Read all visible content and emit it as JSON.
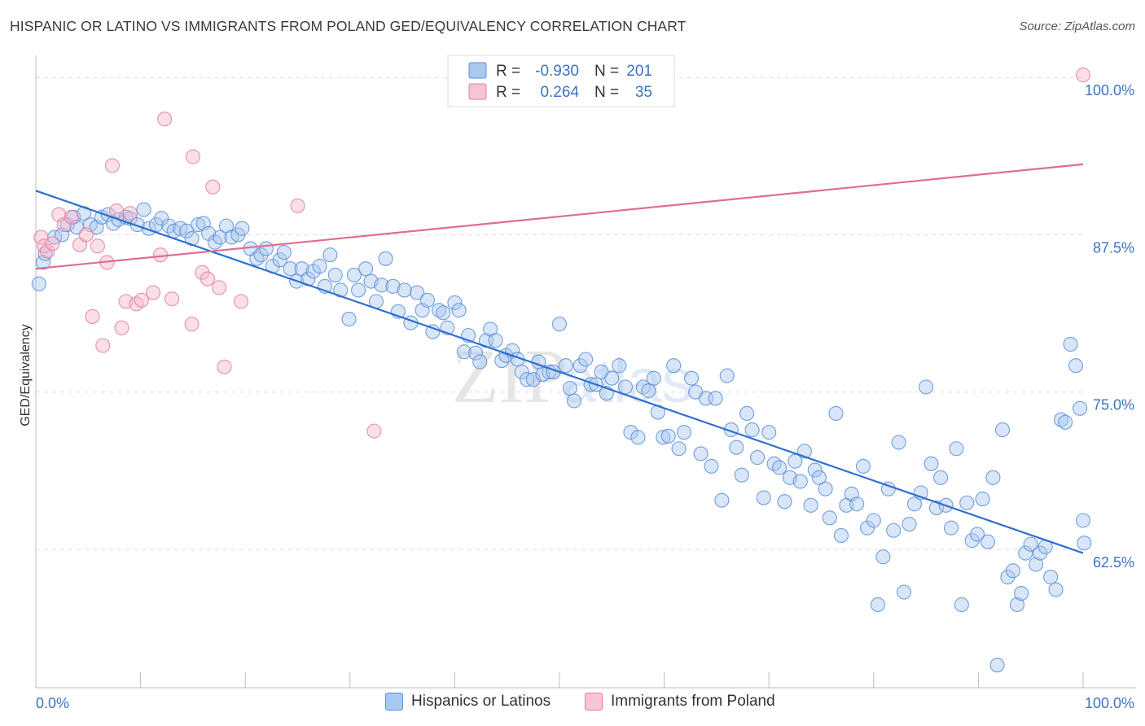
{
  "title": "HISPANIC OR LATINO VS IMMIGRANTS FROM POLAND GED/EQUIVALENCY CORRELATION CHART",
  "source": "Source: ZipAtlas.com",
  "watermark": {
    "zip": "ZIP",
    "atlas": "atlas"
  },
  "chart_data": {
    "type": "scatter",
    "title": "HISPANIC OR LATINO VS IMMIGRANTS FROM POLAND GED/EQUIVALENCY CORRELATION CHART",
    "ylabel": "GED/Equivalency",
    "xlabel": "",
    "xlim": [
      0,
      100
    ],
    "ylim": [
      51.5,
      101.5
    ],
    "x_tick_labels": [
      "0.0%",
      "100.0%"
    ],
    "y_ticks": [
      62.5,
      75.0,
      87.5,
      100.0
    ],
    "y_tick_labels": [
      "62.5%",
      "75.0%",
      "87.5%",
      "100.0%"
    ],
    "grid": true,
    "legend": {
      "placement": "top-center",
      "rows": [
        {
          "r_label": "R =",
          "r_value": "-0.930",
          "n_label": "N =",
          "n_value": "201"
        },
        {
          "r_label": "R =",
          "r_value": "0.264",
          "n_label": "N =",
          "n_value": "35"
        }
      ]
    },
    "series": [
      {
        "name": "Hispanics or Latinos",
        "color": "#5b8fd6",
        "fill": "#a9c8ef",
        "trend": {
          "x": [
            0,
            100
          ],
          "y": [
            91.0,
            62.2
          ]
        },
        "points": [
          [
            0.3,
            83.6
          ],
          [
            0.7,
            85.3
          ],
          [
            0.9,
            86.0
          ],
          [
            1.8,
            87.3
          ],
          [
            2.5,
            87.5
          ],
          [
            3.0,
            88.3
          ],
          [
            3.6,
            88.9
          ],
          [
            3.9,
            88.1
          ],
          [
            4.6,
            89.2
          ],
          [
            5.2,
            88.3
          ],
          [
            5.8,
            88.1
          ],
          [
            6.3,
            88.9
          ],
          [
            6.9,
            89.1
          ],
          [
            7.4,
            88.4
          ],
          [
            7.9,
            88.7
          ],
          [
            8.6,
            88.9
          ],
          [
            9.0,
            88.8
          ],
          [
            9.7,
            88.3
          ],
          [
            10.3,
            89.5
          ],
          [
            10.8,
            88.0
          ],
          [
            11.5,
            88.3
          ],
          [
            12.0,
            88.8
          ],
          [
            12.7,
            88.2
          ],
          [
            13.2,
            87.8
          ],
          [
            13.8,
            88.0
          ],
          [
            14.4,
            87.8
          ],
          [
            14.9,
            87.2
          ],
          [
            15.5,
            88.3
          ],
          [
            16.0,
            88.4
          ],
          [
            16.5,
            87.6
          ],
          [
            17.1,
            86.9
          ],
          [
            17.6,
            87.3
          ],
          [
            18.2,
            88.2
          ],
          [
            18.7,
            87.3
          ],
          [
            19.3,
            87.5
          ],
          [
            19.7,
            88.0
          ],
          [
            20.5,
            86.4
          ],
          [
            21.1,
            85.6
          ],
          [
            21.5,
            85.9
          ],
          [
            22.0,
            86.4
          ],
          [
            22.6,
            85.0
          ],
          [
            23.3,
            85.5
          ],
          [
            23.7,
            86.1
          ],
          [
            24.3,
            84.8
          ],
          [
            24.9,
            83.8
          ],
          [
            25.4,
            84.8
          ],
          [
            26.0,
            84.0
          ],
          [
            26.5,
            84.6
          ],
          [
            27.1,
            85.0
          ],
          [
            27.6,
            83.4
          ],
          [
            28.1,
            85.9
          ],
          [
            28.6,
            84.3
          ],
          [
            29.1,
            83.1
          ],
          [
            29.9,
            80.8
          ],
          [
            30.4,
            84.3
          ],
          [
            30.8,
            83.1
          ],
          [
            31.5,
            84.8
          ],
          [
            32.0,
            83.8
          ],
          [
            32.5,
            82.2
          ],
          [
            33.0,
            83.5
          ],
          [
            33.4,
            85.6
          ],
          [
            34.1,
            83.4
          ],
          [
            34.6,
            81.4
          ],
          [
            35.2,
            83.1
          ],
          [
            35.8,
            80.5
          ],
          [
            36.4,
            82.9
          ],
          [
            36.9,
            81.5
          ],
          [
            37.4,
            82.3
          ],
          [
            37.9,
            79.8
          ],
          [
            38.5,
            81.5
          ],
          [
            38.9,
            81.3
          ],
          [
            39.3,
            80.1
          ],
          [
            40.0,
            82.1
          ],
          [
            40.4,
            81.5
          ],
          [
            40.9,
            78.2
          ],
          [
            41.3,
            79.5
          ],
          [
            42.0,
            78.1
          ],
          [
            42.4,
            77.4
          ],
          [
            43.0,
            79.1
          ],
          [
            43.4,
            80.0
          ],
          [
            43.9,
            79.1
          ],
          [
            44.5,
            77.5
          ],
          [
            44.9,
            77.9
          ],
          [
            45.5,
            78.3
          ],
          [
            46.0,
            77.6
          ],
          [
            46.4,
            76.6
          ],
          [
            46.9,
            76.0
          ],
          [
            47.5,
            76.0
          ],
          [
            48.0,
            77.4
          ],
          [
            48.4,
            76.4
          ],
          [
            49.0,
            76.6
          ],
          [
            49.4,
            76.6
          ],
          [
            50.0,
            80.4
          ],
          [
            50.6,
            77.1
          ],
          [
            51.0,
            75.3
          ],
          [
            51.4,
            74.3
          ],
          [
            52.0,
            77.1
          ],
          [
            52.5,
            77.6
          ],
          [
            53.0,
            75.6
          ],
          [
            53.5,
            75.6
          ],
          [
            54.0,
            76.6
          ],
          [
            54.5,
            74.9
          ],
          [
            55.0,
            76.1
          ],
          [
            55.7,
            77.1
          ],
          [
            56.3,
            75.4
          ],
          [
            56.8,
            71.8
          ],
          [
            57.5,
            71.4
          ],
          [
            58.0,
            75.4
          ],
          [
            58.5,
            75.1
          ],
          [
            59.0,
            76.1
          ],
          [
            59.4,
            73.4
          ],
          [
            59.9,
            71.4
          ],
          [
            60.4,
            71.5
          ],
          [
            60.9,
            77.1
          ],
          [
            61.4,
            70.5
          ],
          [
            61.9,
            71.8
          ],
          [
            62.6,
            76.1
          ],
          [
            63.0,
            75.0
          ],
          [
            63.5,
            70.1
          ],
          [
            64.0,
            74.5
          ],
          [
            64.5,
            69.1
          ],
          [
            64.9,
            74.5
          ],
          [
            65.5,
            66.4
          ],
          [
            66.0,
            76.3
          ],
          [
            66.4,
            72.0
          ],
          [
            66.9,
            70.6
          ],
          [
            67.4,
            68.4
          ],
          [
            67.9,
            73.3
          ],
          [
            68.4,
            72.0
          ],
          [
            68.9,
            69.8
          ],
          [
            69.5,
            66.6
          ],
          [
            70.0,
            71.8
          ],
          [
            70.5,
            69.3
          ],
          [
            71.0,
            69.0
          ],
          [
            71.5,
            66.3
          ],
          [
            72.0,
            68.2
          ],
          [
            72.5,
            69.5
          ],
          [
            73.0,
            67.9
          ],
          [
            73.4,
            70.3
          ],
          [
            74.0,
            66.0
          ],
          [
            74.4,
            68.8
          ],
          [
            74.8,
            68.2
          ],
          [
            75.4,
            67.3
          ],
          [
            75.8,
            65.0
          ],
          [
            76.4,
            73.3
          ],
          [
            76.9,
            63.6
          ],
          [
            77.4,
            66.0
          ],
          [
            77.9,
            66.9
          ],
          [
            78.4,
            66.1
          ],
          [
            79.0,
            69.1
          ],
          [
            79.4,
            64.2
          ],
          [
            80.0,
            64.8
          ],
          [
            80.4,
            58.1
          ],
          [
            80.9,
            61.9
          ],
          [
            81.4,
            67.3
          ],
          [
            81.9,
            64.0
          ],
          [
            82.4,
            71.0
          ],
          [
            82.9,
            59.1
          ],
          [
            83.4,
            64.5
          ],
          [
            83.9,
            66.1
          ],
          [
            84.5,
            67.0
          ],
          [
            85.0,
            75.4
          ],
          [
            85.5,
            69.3
          ],
          [
            86.0,
            65.8
          ],
          [
            86.4,
            68.2
          ],
          [
            86.9,
            66.0
          ],
          [
            87.4,
            64.2
          ],
          [
            87.9,
            70.5
          ],
          [
            88.4,
            58.1
          ],
          [
            88.9,
            66.2
          ],
          [
            89.4,
            63.2
          ],
          [
            89.9,
            63.7
          ],
          [
            90.4,
            66.5
          ],
          [
            90.9,
            63.1
          ],
          [
            91.4,
            68.2
          ],
          [
            91.8,
            53.3
          ],
          [
            92.3,
            72.0
          ],
          [
            92.8,
            60.3
          ],
          [
            93.3,
            60.8
          ],
          [
            93.7,
            58.1
          ],
          [
            94.1,
            59.0
          ],
          [
            94.5,
            62.2
          ],
          [
            95.0,
            62.9
          ],
          [
            95.5,
            61.3
          ],
          [
            95.9,
            62.2
          ],
          [
            96.4,
            62.7
          ],
          [
            96.9,
            60.3
          ],
          [
            97.4,
            59.3
          ],
          [
            97.9,
            72.8
          ],
          [
            98.3,
            72.6
          ],
          [
            98.8,
            78.8
          ],
          [
            99.3,
            77.1
          ],
          [
            99.7,
            73.7
          ],
          [
            100.0,
            64.8
          ],
          [
            100.1,
            63.0
          ]
        ]
      },
      {
        "name": "Immigrants from Poland",
        "color": "#e27ca0",
        "fill": "#f6b8cc",
        "trend": {
          "x": [
            0,
            100
          ],
          "y": [
            84.8,
            93.1
          ]
        },
        "points": [
          [
            0.5,
            87.3
          ],
          [
            0.8,
            86.6
          ],
          [
            1.1,
            86.2
          ],
          [
            1.6,
            86.8
          ],
          [
            2.2,
            89.1
          ],
          [
            2.7,
            88.3
          ],
          [
            3.4,
            88.9
          ],
          [
            4.2,
            86.7
          ],
          [
            4.8,
            87.5
          ],
          [
            5.4,
            81.0
          ],
          [
            5.9,
            86.6
          ],
          [
            6.4,
            78.7
          ],
          [
            6.8,
            85.3
          ],
          [
            7.3,
            93.0
          ],
          [
            7.7,
            89.4
          ],
          [
            8.2,
            80.1
          ],
          [
            8.6,
            82.2
          ],
          [
            9.0,
            89.2
          ],
          [
            9.6,
            82.0
          ],
          [
            10.1,
            82.3
          ],
          [
            11.2,
            82.9
          ],
          [
            11.9,
            85.9
          ],
          [
            12.3,
            96.7
          ],
          [
            13.0,
            82.4
          ],
          [
            14.9,
            80.4
          ],
          [
            15.9,
            84.5
          ],
          [
            16.4,
            84.0
          ],
          [
            16.9,
            91.3
          ],
          [
            17.5,
            83.3
          ],
          [
            18.0,
            77.0
          ],
          [
            19.6,
            82.2
          ],
          [
            25.0,
            89.8
          ],
          [
            32.3,
            71.9
          ],
          [
            100.0,
            100.2
          ],
          [
            15.0,
            93.7
          ]
        ]
      }
    ]
  }
}
